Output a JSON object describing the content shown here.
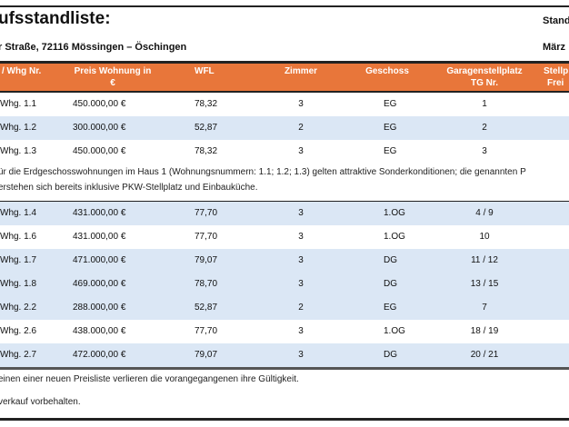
{
  "title": "ufsstandliste:",
  "address": "r Straße, 72116 Mössingen – Öschingen",
  "stand_label": "Stand",
  "date": "März",
  "headers": {
    "nr": "/ Whg Nr.",
    "preis_1": "Preis Wohnung in",
    "preis_2": "€",
    "wfl": "WFL",
    "zimmer": "Zimmer",
    "geschoss": "Geschoss",
    "garage_1": "Garagenstellplatz",
    "garage_2": "TG Nr.",
    "stell_1": "Stellp",
    "stell_2": "Frei"
  },
  "group1": [
    {
      "nr": "Whg. 1.1",
      "preis": "450.000,00 €",
      "wfl": "78,32",
      "zimmer": "3",
      "geschoss": "EG",
      "tg": "1"
    },
    {
      "nr": "Whg. 1.2",
      "preis": "300.000,00 €",
      "wfl": "52,87",
      "zimmer": "2",
      "geschoss": "EG",
      "tg": "2"
    },
    {
      "nr": "Whg. 1.3",
      "preis": "450.000,00 €",
      "wfl": "78,32",
      "zimmer": "3",
      "geschoss": "EG",
      "tg": "3"
    }
  ],
  "note1_line1": "ür die Erdgeschosswohnungen im Haus 1 (Wohnungsnummern: 1.1; 1.2; 1.3) gelten attraktive Sonderkonditionen; die genannten P",
  "note1_line2": "erstehen sich bereits inklusive PKW-Stellplatz und Einbauküche.",
  "group2": [
    {
      "nr": "Whg. 1.4",
      "preis": "431.000,00 €",
      "wfl": "77,70",
      "zimmer": "3",
      "geschoss": "1.OG",
      "tg": "4 / 9"
    },
    {
      "nr": "Whg. 1.6",
      "preis": "431.000,00 €",
      "wfl": "77,70",
      "zimmer": "3",
      "geschoss": "1.OG",
      "tg": "10"
    },
    {
      "nr": "Whg. 1.7",
      "preis": "471.000,00 €",
      "wfl": "79,07",
      "zimmer": "3",
      "geschoss": "DG",
      "tg": "11 / 12"
    },
    {
      "nr": "Whg. 1.8",
      "preis": "469.000,00 €",
      "wfl": "78,70",
      "zimmer": "3",
      "geschoss": "DG",
      "tg": "13 / 15"
    },
    {
      "nr": "Whg. 2.2",
      "preis": "288.000,00 €",
      "wfl": "52,87",
      "zimmer": "2",
      "geschoss": "EG",
      "tg": "7"
    },
    {
      "nr": "Whg. 2.6",
      "preis": "438.000,00 €",
      "wfl": "77,70",
      "zimmer": "3",
      "geschoss": "1.OG",
      "tg": "18 / 19"
    },
    {
      "nr": "Whg. 2.7",
      "preis": "472.000,00 €",
      "wfl": "79,07",
      "zimmer": "3",
      "geschoss": "DG",
      "tg": "20 / 21"
    }
  ],
  "note2": "einen einer neuen Preisliste verlieren die vorangegangenen ihre Gültigkeit.",
  "note3": "verkauf vorbehalten."
}
